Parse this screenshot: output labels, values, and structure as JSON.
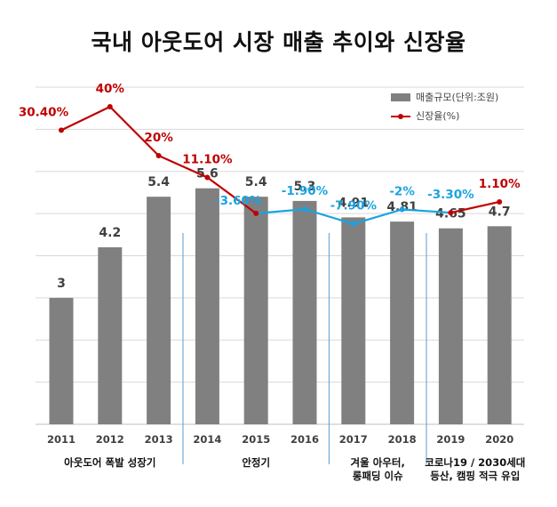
{
  "chart_data": {
    "type": "bar",
    "title": "국내 아웃도어 시장 매출 추이와 신장율",
    "categories": [
      "2011",
      "2012",
      "2013",
      "2014",
      "2015",
      "2016",
      "2017",
      "2018",
      "2019",
      "2020"
    ],
    "series": [
      {
        "name": "매출규모(단위:조원)",
        "type": "bar",
        "color": "#808080",
        "values": [
          3,
          4.2,
          5.4,
          5.6,
          5.4,
          5.3,
          4.91,
          4.81,
          4.65,
          4.7
        ],
        "labels": [
          "3",
          "4.2",
          "5.4",
          "5.6",
          "5.4",
          "5.3",
          "4.91",
          "4.81",
          "4.65",
          "4.7"
        ]
      },
      {
        "name": "신장율(%)",
        "type": "line",
        "color": "#c00000",
        "negative_color": "#1aa3e0",
        "values": [
          30.4,
          40,
          20,
          11.1,
          -3.6,
          -1.9,
          -7.9,
          -2,
          -3.3,
          1.1
        ],
        "labels": [
          "30.40%",
          "40%",
          "20%",
          "11.10%",
          "-3.60%",
          "-1.90%",
          "-7.90%",
          "-2%",
          "-3.30%",
          "1.10%"
        ]
      }
    ],
    "periods": [
      {
        "label": "아웃도어 폭발 성장기",
        "from": "2011",
        "to": "2013"
      },
      {
        "label": "안정기",
        "from": "2014",
        "to": "2016"
      },
      {
        "label": "겨울 아우터,\n롱패딩 이슈",
        "from": "2017",
        "to": "2018"
      },
      {
        "label": "코로나19 / 2030세대\n등산, 캠핑 적극 유입",
        "from": "2019",
        "to": "2020"
      }
    ],
    "xlabel": "",
    "ylabel": "",
    "ylim": [
      0,
      8
    ],
    "grid": true,
    "legend_position": "top-right"
  }
}
